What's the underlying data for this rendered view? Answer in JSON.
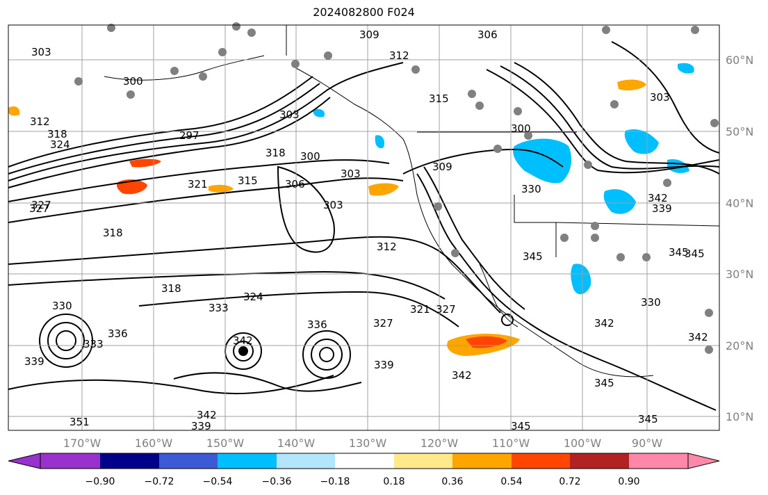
{
  "title": "2024082800 F024",
  "map": {
    "lon_labels": [
      "170°W",
      "160°W",
      "150°W",
      "140°W",
      "130°W",
      "120°W",
      "110°W",
      "100°W",
      "90°W"
    ],
    "lat_labels": [
      "60°N",
      "50°N",
      "40°N",
      "30°N",
      "20°N",
      "10°N"
    ],
    "contour_labels": [
      "309",
      "306",
      "303",
      "312",
      "300",
      "315",
      "312",
      "318",
      "324",
      "297",
      "303",
      "300",
      "306",
      "318",
      "303",
      "312",
      "321",
      "327",
      "315",
      "309",
      "303",
      "318",
      "300",
      "327",
      "318",
      "333",
      "330",
      "324",
      "336",
      "327",
      "330",
      "342",
      "339",
      "345",
      "339",
      "342",
      "345",
      "345",
      "342",
      "345",
      "345",
      "342",
      "339",
      "333",
      "342",
      "339",
      "342",
      "336",
      "345",
      "351",
      "327",
      "321",
      "330",
      "303"
    ],
    "gridline_color": "#a0a0a0",
    "contour_color": "#000000",
    "station_marker_color": "#808080"
  },
  "colorbar": {
    "tick_labels": [
      "−0.90",
      "−0.72",
      "−0.54",
      "−0.36",
      "−0.18",
      "0.18",
      "0.36",
      "0.54",
      "0.72",
      "0.90"
    ],
    "colors": [
      "#9932cc",
      "#00008b",
      "#3b5bd6",
      "#00bfff",
      "#b3e5fc",
      "#ffffff",
      "#ffe98a",
      "#ffa500",
      "#ff4500",
      "#b22222",
      "#ff88aa"
    ],
    "extend": "both"
  }
}
